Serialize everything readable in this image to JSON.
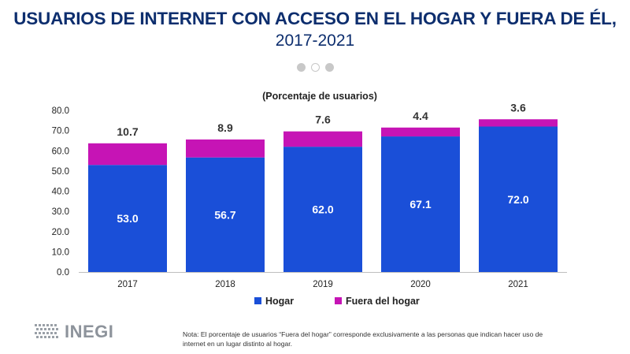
{
  "header": {
    "title": "USUARIOS DE INTERNET CON ACCESO EN EL HOGAR Y FUERA DE ÉL,",
    "subtitle": "2017-2021"
  },
  "pager": {
    "dots": 3,
    "active": [
      0,
      2
    ]
  },
  "chart_data": {
    "type": "bar",
    "stacked": true,
    "title": "(Porcentaje de usuarios)",
    "categories": [
      "2017",
      "2018",
      "2019",
      "2020",
      "2021"
    ],
    "series": [
      {
        "name": "Hogar",
        "color": "#1a4fd8",
        "values": [
          53.0,
          56.7,
          62.0,
          67.1,
          72.0
        ]
      },
      {
        "name": "Fuera del hogar",
        "color": "#c614b5",
        "values": [
          10.7,
          8.9,
          7.6,
          4.4,
          3.6
        ]
      }
    ],
    "ylim": [
      0,
      80
    ],
    "yticks": [
      "0.0",
      "10.0",
      "20.0",
      "30.0",
      "40.0",
      "50.0",
      "60.0",
      "70.0",
      "80.0"
    ],
    "legend_position": "bottom",
    "grid": false
  },
  "footer": {
    "logo_text": "INEGI",
    "note": "Nota: El porcentaje de usuarios “Fuera del hogar” corresponde exclusivamente a las personas que indican hacer uso de internet en un lugar distinto al hogar."
  }
}
